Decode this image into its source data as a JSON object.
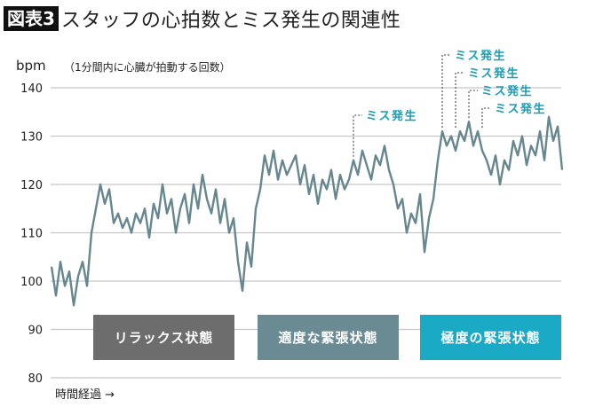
{
  "title": {
    "badge": "図表3",
    "text": "スタッフの心拍数とミス発生の関連性"
  },
  "chart_data": {
    "type": "line",
    "ylabel": "bpm",
    "ylabel_note": "（1分間内に心臓が拍動する回数）",
    "xlabel": "時間経過 →",
    "ylim": [
      80,
      140
    ],
    "yticks": [
      140,
      130,
      120,
      110,
      100,
      90,
      80
    ],
    "grid": true,
    "line_color": "#66878f",
    "values": [
      103,
      97,
      104,
      99,
      102,
      95,
      101,
      104,
      99,
      110,
      115,
      120,
      116,
      119,
      112,
      114,
      111,
      113,
      110,
      114,
      112,
      115,
      109,
      116,
      113,
      120,
      114,
      117,
      110,
      115,
      118,
      112,
      120,
      115,
      122,
      117,
      114,
      119,
      112,
      117,
      110,
      113,
      104,
      98,
      108,
      103,
      115,
      119,
      126,
      122,
      127,
      121,
      125,
      122,
      124,
      126,
      120,
      124,
      118,
      122,
      116,
      121,
      119,
      123,
      117,
      122,
      119,
      121,
      125,
      122,
      127,
      124,
      121,
      126,
      124,
      128,
      123,
      120,
      115,
      117,
      110,
      114,
      112,
      118,
      106,
      113,
      117,
      125,
      131,
      128,
      130,
      127,
      131,
      129,
      133,
      128,
      131,
      127,
      125,
      122,
      126,
      120,
      125,
      123,
      129,
      126,
      130,
      124,
      128,
      126,
      131,
      125,
      134,
      129,
      132,
      123
    ],
    "annotations": [
      {
        "x": 68,
        "label": "ミス発生"
      },
      {
        "x": 88,
        "label": "ミス発生"
      },
      {
        "x": 91,
        "label": "ミス発生"
      },
      {
        "x": 94,
        "label": "ミス発生"
      },
      {
        "x": 97,
        "label": "ミス発生"
      }
    ],
    "annotation_color": "#1a9db5",
    "phases": [
      {
        "label": "リラックス状態",
        "color": "#6d6d6d"
      },
      {
        "label": "適度な緊張状態",
        "color": "#6a8b94"
      },
      {
        "label": "極度の緊張状態",
        "color": "#1aaac6"
      }
    ]
  }
}
